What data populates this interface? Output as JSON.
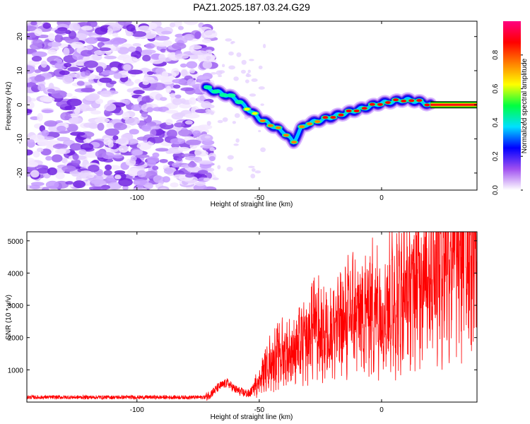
{
  "title": "PAZ1.2025.187.03.24.G29",
  "chart_data": [
    {
      "type": "heatmap",
      "xlabel": "Height of straight line (km)",
      "ylabel": "Frequency (Hz)",
      "xlim": [
        -145,
        39
      ],
      "ylim": [
        -25,
        24.5
      ],
      "xticks": [
        -100,
        -50,
        0
      ],
      "yticks": [
        -20,
        -10,
        0,
        10,
        20
      ],
      "colorbar": {
        "label": "Normalized spectral amplitude",
        "range": [
          0,
          1
        ],
        "ticks": [
          0.0,
          0.2,
          0.4,
          0.6,
          0.8
        ],
        "colormap": [
          "#ffffff",
          "#a050f0",
          "#0000ff",
          "#00e0ff",
          "#00ff40",
          "#ffff00",
          "#ff8000",
          "#ff0000",
          "#ff0080"
        ]
      },
      "ridge": {
        "x": [
          -72,
          -66,
          -60,
          -55,
          -50,
          -45,
          -40,
          -36,
          -33,
          -30,
          -25,
          -20,
          -15,
          -10,
          -5,
          0,
          5,
          10,
          15,
          20,
          39
        ],
        "y": [
          5,
          3.5,
          2,
          -1,
          -4,
          -6,
          -8,
          -11,
          -7,
          -5.5,
          -4.5,
          -3.5,
          -2.5,
          -1.5,
          -0.5,
          0.5,
          1,
          1.5,
          1,
          0,
          0
        ]
      },
      "noise_region_x": [
        -145,
        -72
      ]
    },
    {
      "type": "line",
      "xlabel": "Height of straight line (km)",
      "ylabel": "SNR (10 * v/v)",
      "xlim": [
        -145,
        39
      ],
      "ylim": [
        0,
        5280
      ],
      "xticks": [
        -100,
        -50,
        0
      ],
      "yticks": [
        1000,
        2000,
        3000,
        4000,
        5000
      ],
      "series": [
        {
          "color": "#ff0000",
          "x": [
            -145,
            -72,
            -70,
            -66,
            -63,
            -60,
            -57,
            -54,
            -50,
            -46,
            -42,
            -38,
            -34,
            -30,
            -28,
            -24,
            -20,
            -16,
            -12,
            -8,
            -4,
            0,
            4,
            8,
            12,
            16,
            20,
            24,
            28,
            32,
            36,
            39
          ],
          "y": [
            150,
            150,
            250,
            500,
            600,
            400,
            300,
            250,
            700,
            1200,
            1500,
            1500,
            1700,
            1900,
            2500,
            2000,
            2300,
            2400,
            2800,
            2700,
            3000,
            2800,
            3100,
            3300,
            3500,
            4000,
            4300,
            4700,
            4900,
            5000,
            5100,
            5150
          ]
        }
      ]
    }
  ]
}
